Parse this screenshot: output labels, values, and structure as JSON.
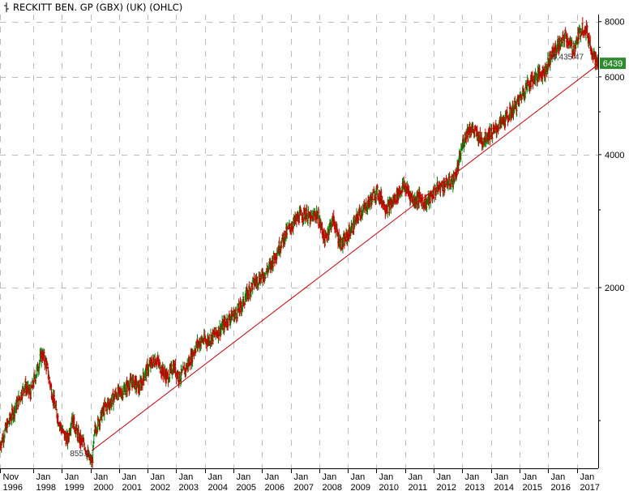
{
  "chart_data": {
    "type": "line",
    "style": "OHLC",
    "title": "RECKITT BEN. GP (GBX) (UK) (OHLC)",
    "scale": "log",
    "ylim": [
      780,
      8300
    ],
    "y_ticks": [
      2000,
      4000,
      6000,
      8000
    ],
    "y_tick_labels": [
      "2000",
      "4000",
      "6000",
      "8000"
    ],
    "x_ticks": [
      {
        "top": "Nov",
        "bottom": "1996",
        "t": 1996.84
      },
      {
        "top": "Jan",
        "bottom": "1998",
        "t": 1998.0
      },
      {
        "top": "Jan",
        "bottom": "1999",
        "t": 1999.0
      },
      {
        "top": "Jan",
        "bottom": "2000",
        "t": 2000.0
      },
      {
        "top": "Jan",
        "bottom": "2001",
        "t": 2001.0
      },
      {
        "top": "Jan",
        "bottom": "2002",
        "t": 2002.0
      },
      {
        "top": "Jan",
        "bottom": "2003",
        "t": 2003.0
      },
      {
        "top": "Jan",
        "bottom": "2004",
        "t": 2004.0
      },
      {
        "top": "Jan",
        "bottom": "2005",
        "t": 2005.0
      },
      {
        "top": "Jan",
        "bottom": "2006",
        "t": 2006.0
      },
      {
        "top": "Jan",
        "bottom": "2007",
        "t": 2007.0
      },
      {
        "top": "Jan",
        "bottom": "2008",
        "t": 2008.0
      },
      {
        "top": "Jan",
        "bottom": "2009",
        "t": 2009.0
      },
      {
        "top": "Jan",
        "bottom": "2010",
        "t": 2010.0
      },
      {
        "top": "Jan",
        "bottom": "2011",
        "t": 2011.0
      },
      {
        "top": "Jan",
        "bottom": "2012",
        "t": 2012.0
      },
      {
        "top": "Jan",
        "bottom": "2013",
        "t": 2013.0
      },
      {
        "top": "Jan",
        "bottom": "2014",
        "t": 2014.0
      },
      {
        "top": "Jan",
        "bottom": "2015",
        "t": 2015.0
      },
      {
        "top": "Jan",
        "bottom": "2016",
        "t": 2016.0
      },
      {
        "top": "Jan",
        "bottom": "2017",
        "t": 2017.0
      }
    ],
    "xlim": [
      1996.84,
      2017.75
    ],
    "series": [
      {
        "color_up": "#008000",
        "color_down": "#cc0000",
        "points": [
          [
            1996.84,
            880
          ],
          [
            1997.1,
            980
          ],
          [
            1997.4,
            1080
          ],
          [
            1997.7,
            1200
          ],
          [
            1997.9,
            1150
          ],
          [
            1998.1,
            1280
          ],
          [
            1998.3,
            1420
          ],
          [
            1998.45,
            1350
          ],
          [
            1998.6,
            1200
          ],
          [
            1998.8,
            1050
          ],
          [
            1999.0,
            950
          ],
          [
            1999.2,
            900
          ],
          [
            1999.35,
            1020
          ],
          [
            1999.5,
            950
          ],
          [
            1999.65,
            900
          ],
          [
            1999.8,
            880
          ],
          [
            1999.95,
            820
          ],
          [
            2000.05,
            790
          ],
          [
            2000.15,
            950
          ],
          [
            2000.3,
            1000
          ],
          [
            2000.5,
            1070
          ],
          [
            2000.7,
            1100
          ],
          [
            2000.9,
            1150
          ],
          [
            2001.1,
            1160
          ],
          [
            2001.3,
            1200
          ],
          [
            2001.5,
            1230
          ],
          [
            2001.7,
            1180
          ],
          [
            2001.9,
            1280
          ],
          [
            2002.1,
            1340
          ],
          [
            2002.3,
            1380
          ],
          [
            2002.5,
            1300
          ],
          [
            2002.7,
            1250
          ],
          [
            2002.9,
            1330
          ],
          [
            2003.1,
            1250
          ],
          [
            2003.3,
            1300
          ],
          [
            2003.5,
            1380
          ],
          [
            2003.7,
            1480
          ],
          [
            2003.9,
            1520
          ],
          [
            2004.1,
            1520
          ],
          [
            2004.3,
            1560
          ],
          [
            2004.5,
            1600
          ],
          [
            2004.7,
            1660
          ],
          [
            2004.9,
            1720
          ],
          [
            2005.1,
            1750
          ],
          [
            2005.3,
            1830
          ],
          [
            2005.5,
            1950
          ],
          [
            2005.7,
            2050
          ],
          [
            2005.9,
            2100
          ],
          [
            2006.1,
            2150
          ],
          [
            2006.3,
            2250
          ],
          [
            2006.5,
            2400
          ],
          [
            2006.7,
            2550
          ],
          [
            2006.9,
            2700
          ],
          [
            2007.1,
            2800
          ],
          [
            2007.3,
            2900
          ],
          [
            2007.5,
            2950
          ],
          [
            2007.7,
            2850
          ],
          [
            2007.9,
            2950
          ],
          [
            2008.1,
            2700
          ],
          [
            2008.2,
            2550
          ],
          [
            2008.35,
            2750
          ],
          [
            2008.5,
            2850
          ],
          [
            2008.65,
            2600
          ],
          [
            2008.8,
            2500
          ],
          [
            2008.95,
            2600
          ],
          [
            2009.1,
            2700
          ],
          [
            2009.25,
            2800
          ],
          [
            2009.4,
            2950
          ],
          [
            2009.55,
            3000
          ],
          [
            2009.7,
            3100
          ],
          [
            2009.85,
            3200
          ],
          [
            2010.0,
            3300
          ],
          [
            2010.15,
            3200
          ],
          [
            2010.3,
            3050
          ],
          [
            2010.45,
            3050
          ],
          [
            2010.6,
            3150
          ],
          [
            2010.8,
            3300
          ],
          [
            2010.95,
            3400
          ],
          [
            2011.1,
            3300
          ],
          [
            2011.3,
            3150
          ],
          [
            2011.5,
            3200
          ],
          [
            2011.7,
            3100
          ],
          [
            2011.9,
            3200
          ],
          [
            2012.1,
            3350
          ],
          [
            2012.3,
            3400
          ],
          [
            2012.5,
            3450
          ],
          [
            2012.7,
            3500
          ],
          [
            2012.85,
            3750
          ],
          [
            2013.0,
            4200
          ],
          [
            2013.15,
            4500
          ],
          [
            2013.3,
            4600
          ],
          [
            2013.5,
            4450
          ],
          [
            2013.7,
            4300
          ],
          [
            2013.9,
            4450
          ],
          [
            2014.1,
            4500
          ],
          [
            2014.3,
            4700
          ],
          [
            2014.5,
            4800
          ],
          [
            2014.7,
            5000
          ],
          [
            2014.9,
            5200
          ],
          [
            2015.1,
            5500
          ],
          [
            2015.3,
            5800
          ],
          [
            2015.5,
            5950
          ],
          [
            2015.7,
            6100
          ],
          [
            2015.9,
            6200
          ],
          [
            2016.1,
            6700
          ],
          [
            2016.3,
            7000
          ],
          [
            2016.5,
            7200
          ],
          [
            2016.6,
            7500
          ],
          [
            2016.75,
            7100
          ],
          [
            2016.9,
            6900
          ],
          [
            2017.05,
            7400
          ],
          [
            2017.2,
            7800
          ],
          [
            2017.35,
            7600
          ],
          [
            2017.5,
            7000
          ],
          [
            2017.6,
            6700
          ],
          [
            2017.7,
            6439
          ]
        ]
      }
    ],
    "trendline": {
      "from": [
        2000.05,
        855.2
      ],
      "to": [
        2017.75,
        6400
      ],
      "color": "#cc0000"
    },
    "annotations": [
      {
        "text": "855.2",
        "t": 2000.05,
        "v": 855.2
      },
      {
        "text": "6,435.47",
        "t": 2017.3,
        "v": 6435.47
      }
    ],
    "last_price": {
      "value": "6439",
      "bg": "#2e8b2e",
      "fg": "#ffffff"
    },
    "grid": "dashed"
  }
}
